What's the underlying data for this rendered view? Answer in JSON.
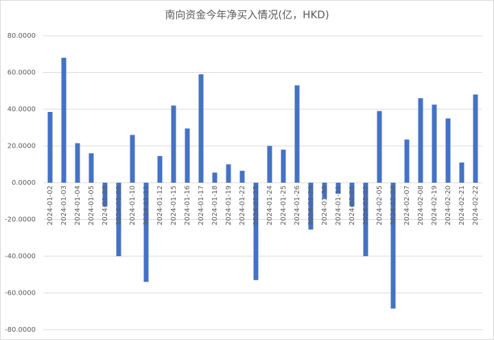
{
  "chart_data": {
    "type": "bar",
    "title": "南向资金今年净买入情况(亿，HKD)",
    "categories": [
      "2024-01-02",
      "2024-01-03",
      "2024-01-04",
      "2024-01-05",
      "2024-01-08",
      "2024-01-09",
      "2024-01-10",
      "2024-01-11",
      "2024-01-12",
      "2024-01-15",
      "2024-01-16",
      "2024-01-17",
      "2024-01-18",
      "2024-01-19",
      "2024-01-22",
      "2024-01-23",
      "2024-01-24",
      "2024-01-25",
      "2024-01-26",
      "2024-01-29",
      "2024-01-30",
      "2024-01-31",
      "2024-02-01",
      "2024-02-02",
      "2024-02-05",
      "2024-02-06",
      "2024-02-07",
      "2024-02-08",
      "2024-02-19",
      "2024-02-20",
      "2024-02-21",
      "2024-02-22"
    ],
    "values": [
      38.5,
      68,
      21.5,
      16,
      -13,
      -40,
      26,
      -54,
      14.5,
      42,
      29.5,
      59,
      5.5,
      10,
      6.5,
      -53,
      20,
      18,
      53,
      -25.5,
      -8.5,
      -6,
      -13,
      -40,
      39,
      -68.5,
      23.5,
      46,
      42.5,
      35,
      11,
      48
    ],
    "color": "#4472c4",
    "ylim": [
      -80,
      80
    ],
    "yticks": [
      {
        "value": -80,
        "label": "-80.0000"
      },
      {
        "value": -60,
        "label": "-60.0000"
      },
      {
        "value": -40,
        "label": "-40.0000"
      },
      {
        "value": -20,
        "label": "-20.0000"
      },
      {
        "value": 0,
        "label": "0.0000"
      },
      {
        "value": 20,
        "label": "20.0000"
      },
      {
        "value": 40,
        "label": "40.0000"
      },
      {
        "value": 60,
        "label": "60.0000"
      },
      {
        "value": 80,
        "label": "80.0000"
      }
    ],
    "grid": true
  }
}
